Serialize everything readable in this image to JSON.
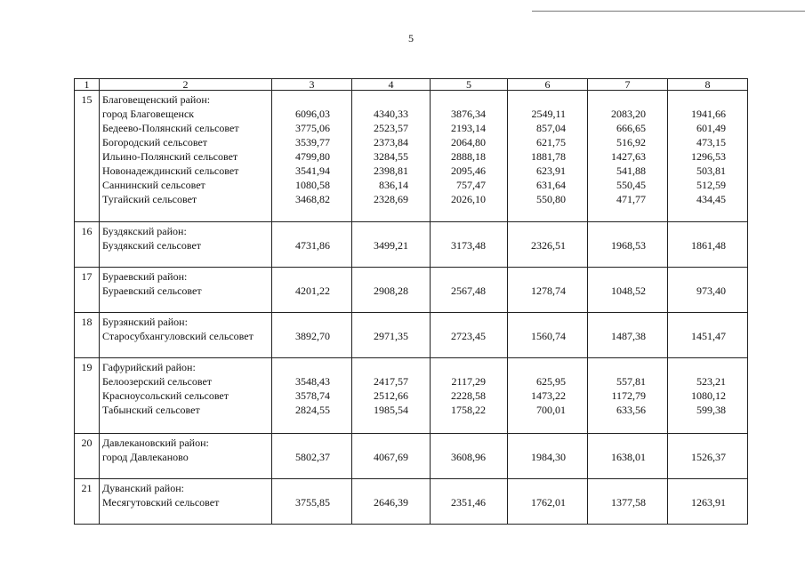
{
  "page_number": "5",
  "header": [
    "1",
    "2",
    "3",
    "4",
    "5",
    "6",
    "7",
    "8"
  ],
  "groups": [
    {
      "num": "15",
      "district": "Благовещенский район:",
      "rows": [
        {
          "name": "город Благовещенск",
          "values": [
            "6096,03",
            "4340,33",
            "3876,34",
            "2549,11",
            "2083,20",
            "1941,66"
          ]
        },
        {
          "name": "Бедеево-Полянский сельсовет",
          "values": [
            "3775,06",
            "2523,57",
            "2193,14",
            "857,04",
            "666,65",
            "601,49"
          ]
        },
        {
          "name": "Богородский сельсовет",
          "values": [
            "3539,77",
            "2373,84",
            "2064,80",
            "621,75",
            "516,92",
            "473,15"
          ]
        },
        {
          "name": "Ильино-Полянский сельсовет",
          "values": [
            "4799,80",
            "3284,55",
            "2888,18",
            "1881,78",
            "1427,63",
            "1296,53"
          ]
        },
        {
          "name": "Новонадеждинский сельсовет",
          "values": [
            "3541,94",
            "2398,81",
            "2095,46",
            "623,91",
            "541,88",
            "503,81"
          ]
        },
        {
          "name": "Саннинский сельсовет",
          "values": [
            "1080,58",
            "836,14",
            "757,47",
            "631,64",
            "550,45",
            "512,59"
          ]
        },
        {
          "name": "Тугайский сельсовет",
          "values": [
            "3468,82",
            "2328,69",
            "2026,10",
            "550,80",
            "471,77",
            "434,45"
          ]
        }
      ]
    },
    {
      "num": "16",
      "district": "Буздякский район:",
      "rows": [
        {
          "name": "Буздякский сельсовет",
          "values": [
            "4731,86",
            "3499,21",
            "3173,48",
            "2326,51",
            "1968,53",
            "1861,48"
          ]
        }
      ]
    },
    {
      "num": "17",
      "district": "Бураевский район:",
      "rows": [
        {
          "name": "Бураевский сельсовет",
          "values": [
            "4201,22",
            "2908,28",
            "2567,48",
            "1278,74",
            "1048,52",
            "973,40"
          ]
        }
      ]
    },
    {
      "num": "18",
      "district": "Бурзянский район:",
      "rows": [
        {
          "name": "Старосубхангуловский сельсовет",
          "values": [
            "3892,70",
            "2971,35",
            "2723,45",
            "1560,74",
            "1487,38",
            "1451,47"
          ]
        }
      ]
    },
    {
      "num": "19",
      "district": "Гафурийский район:",
      "rows": [
        {
          "name": "Белоозерский сельсовет",
          "values": [
            "3548,43",
            "2417,57",
            "2117,29",
            "625,95",
            "557,81",
            "523,21"
          ]
        },
        {
          "name": "Красноусольский сельсовет",
          "values": [
            "3578,74",
            "2512,66",
            "2228,58",
            "1473,22",
            "1172,79",
            "1080,12"
          ]
        },
        {
          "name": "Табынский сельсовет",
          "values": [
            "2824,55",
            "1985,54",
            "1758,22",
            "700,01",
            "633,56",
            "599,38"
          ]
        }
      ]
    },
    {
      "num": "20",
      "district": "Давлекановский район:",
      "rows": [
        {
          "name": "город Давлеканово",
          "values": [
            "5802,37",
            "4067,69",
            "3608,96",
            "1984,30",
            "1638,01",
            "1526,37"
          ]
        }
      ]
    },
    {
      "num": "21",
      "district": "Дуванский район:",
      "rows": [
        {
          "name": "Месягутовский сельсовет",
          "values": [
            "3755,85",
            "2646,39",
            "2351,46",
            "1762,01",
            "1377,58",
            "1263,91"
          ]
        }
      ]
    }
  ]
}
